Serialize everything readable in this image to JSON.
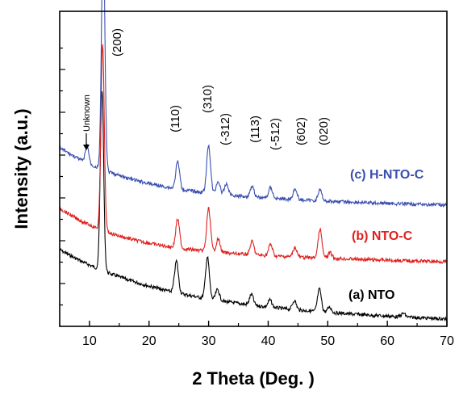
{
  "chart_data": {
    "type": "line",
    "title": "",
    "xlabel": "2 Theta (Deg. )",
    "ylabel": "Intensity (a.u.)",
    "xlim": [
      5,
      70
    ],
    "xticks": [
      "10",
      "20",
      "30",
      "40",
      "50",
      "60",
      "70"
    ],
    "y_ticks_labeled": false,
    "grid": false,
    "series": [
      {
        "name": "(a) NTO",
        "color": "#000000",
        "peaks": [
          [
            12.1,
            2.0
          ],
          [
            24.6,
            0.35
          ],
          [
            29.8,
            0.46
          ],
          [
            31.5,
            0.12
          ],
          [
            37.2,
            0.12
          ],
          [
            40.3,
            0.08
          ],
          [
            44.4,
            0.1
          ],
          [
            48.6,
            0.25
          ],
          [
            50.3,
            0.06
          ],
          [
            62.7,
            0.04
          ]
        ]
      },
      {
        "name": "(b) NTO-C",
        "color": "#e0201e",
        "peaks": [
          [
            12.2,
            1.95
          ],
          [
            24.8,
            0.3
          ],
          [
            30.0,
            0.45
          ],
          [
            31.6,
            0.14
          ],
          [
            37.3,
            0.14
          ],
          [
            40.4,
            0.12
          ],
          [
            44.5,
            0.1
          ],
          [
            48.7,
            0.3
          ],
          [
            50.4,
            0.06
          ]
        ]
      },
      {
        "name": "(c) H-NTO-C",
        "color": "#3a4fb0",
        "peaks": [
          [
            9.6,
            0.2
          ],
          [
            12.3,
            2.65
          ],
          [
            24.8,
            0.3
          ],
          [
            30.0,
            0.52
          ],
          [
            31.6,
            0.14
          ],
          [
            33.0,
            0.12
          ],
          [
            37.3,
            0.12
          ],
          [
            40.4,
            0.12
          ],
          [
            44.5,
            0.12
          ],
          [
            48.7,
            0.12
          ]
        ]
      }
    ],
    "peak_labels": [
      "(200)",
      "(110)",
      "(310)",
      "(-312)",
      "(113)",
      "(-512)",
      "(602)",
      "(020)"
    ],
    "annotation": "Unknown"
  }
}
